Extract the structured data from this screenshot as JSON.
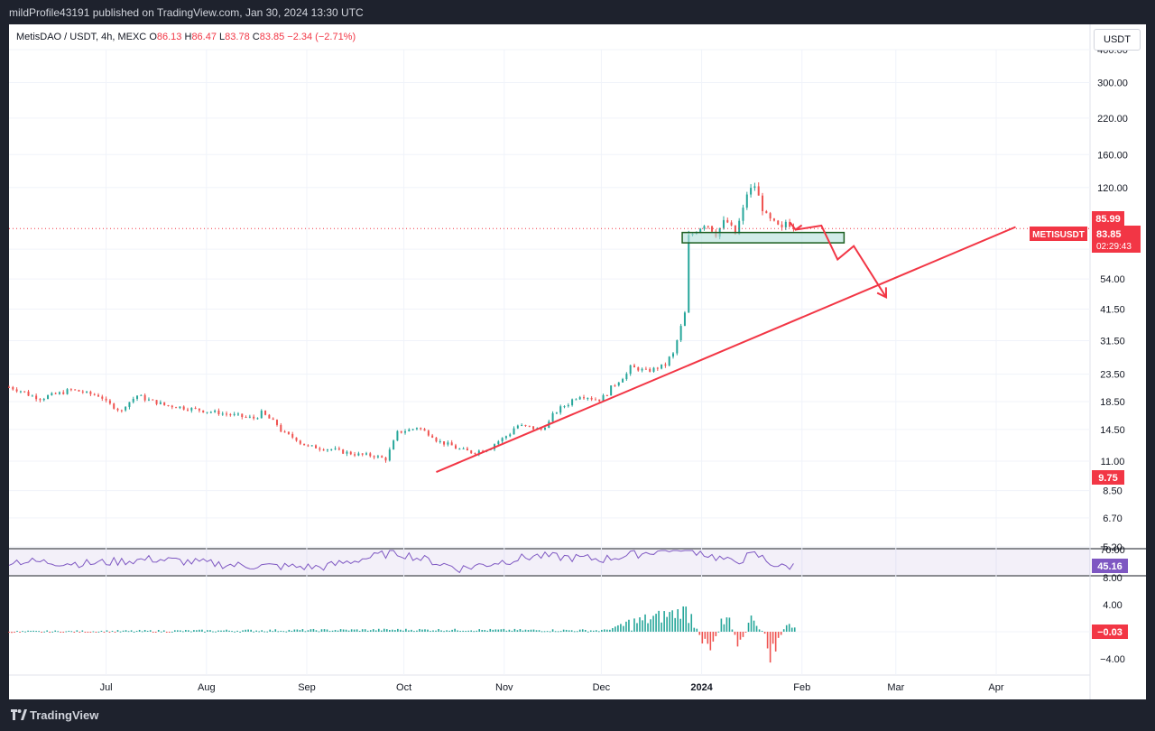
{
  "header": {
    "publisher_line": "mildProfile43191 published on TradingView.com, Jan 30, 2024 13:30 UTC"
  },
  "legend": {
    "symbol": "MetisDAO / USDT, 4h, MEXC",
    "o_label": "O",
    "o": "86.13",
    "h_label": "H",
    "h": "86.47",
    "l_label": "L",
    "l": "83.78",
    "c_label": "C",
    "c": "83.85",
    "change": "−2.34 (−2.71%)"
  },
  "currency_button": "USDT",
  "price_axis": {
    "ticks": [
      "400.00",
      "300.00",
      "220.00",
      "160.00",
      "120.00",
      "70.00",
      "54.00",
      "41.50",
      "31.50",
      "23.50",
      "18.50",
      "14.50",
      "11.00",
      "8.50",
      "6.70",
      "5.20"
    ],
    "badges": {
      "high": "85.99",
      "symbol": "METISUSDT",
      "last": "83.85",
      "countdown": "02:29:43",
      "low": "9.75"
    }
  },
  "rsi_pane": {
    "ticks": [
      "70.00"
    ],
    "value": "45.16"
  },
  "macd_pane": {
    "ticks": [
      "8.00",
      "4.00",
      "−4.00"
    ],
    "value": "−0.03"
  },
  "time_axis": {
    "labels": [
      "Jul",
      "Aug",
      "Sep",
      "Oct",
      "Nov",
      "Dec",
      "2024",
      "Feb",
      "Mar",
      "Apr"
    ]
  },
  "footer": {
    "brand": "TradingView"
  },
  "colors": {
    "up": "#26a69a",
    "down": "#ef5350",
    "annotation": "#f23645",
    "rsi": "#7e57c2",
    "zone_fill": "#b2dfdb",
    "zone_border": "#1b5e20"
  },
  "chart_data": {
    "type": "candlestick",
    "scale": "log",
    "ylim": [
      5.2,
      400
    ],
    "xlim": [
      "2023-06-01",
      "2024-04-30"
    ],
    "grid": true,
    "price_path": [
      [
        "2023-06-01",
        21.0
      ],
      [
        "2023-06-10",
        19.0
      ],
      [
        "2023-06-20",
        20.5
      ],
      [
        "2023-06-28",
        19.5
      ],
      [
        "2023-07-05",
        17.0
      ],
      [
        "2023-07-10",
        19.5
      ],
      [
        "2023-07-18",
        18.0
      ],
      [
        "2023-07-25",
        17.5
      ],
      [
        "2023-08-01",
        17.0
      ],
      [
        "2023-08-08",
        16.5
      ],
      [
        "2023-08-15",
        16.0
      ],
      [
        "2023-08-18",
        16.8
      ],
      [
        "2023-08-25",
        14.0
      ],
      [
        "2023-09-01",
        12.5
      ],
      [
        "2023-09-08",
        12.2
      ],
      [
        "2023-09-15",
        11.7
      ],
      [
        "2023-09-22",
        11.5
      ],
      [
        "2023-09-25",
        11.2
      ],
      [
        "2023-09-28",
        14.0
      ],
      [
        "2023-10-05",
        14.8
      ],
      [
        "2023-10-12",
        13.0
      ],
      [
        "2023-10-18",
        12.2
      ],
      [
        "2023-10-22",
        11.8
      ],
      [
        "2023-10-28",
        12.5
      ],
      [
        "2023-11-05",
        15.0
      ],
      [
        "2023-11-12",
        14.5
      ],
      [
        "2023-11-18",
        17.5
      ],
      [
        "2023-11-24",
        19.5
      ],
      [
        "2023-11-30",
        18.8
      ],
      [
        "2023-12-05",
        21.5
      ],
      [
        "2023-12-10",
        25.0
      ],
      [
        "2023-12-15",
        24.0
      ],
      [
        "2023-12-20",
        25.5
      ],
      [
        "2023-12-23",
        28.0
      ],
      [
        "2023-12-26",
        40.0
      ],
      [
        "2023-12-27",
        60.0
      ],
      [
        "2023-12-28",
        78.0
      ],
      [
        "2024-01-02",
        90.0
      ],
      [
        "2024-01-05",
        80.0
      ],
      [
        "2024-01-08",
        93.0
      ],
      [
        "2024-01-11",
        80.0
      ],
      [
        "2024-01-14",
        110.0
      ],
      [
        "2024-01-17",
        122.0
      ],
      [
        "2024-01-19",
        100.0
      ],
      [
        "2024-01-22",
        90.0
      ],
      [
        "2024-01-25",
        83.0
      ],
      [
        "2024-01-27",
        89.0
      ],
      [
        "2024-01-30",
        83.85
      ]
    ],
    "rsi_path": [
      [
        "2023-06-01",
        52
      ],
      [
        "2023-06-25",
        48
      ],
      [
        "2023-07-15",
        55
      ],
      [
        "2023-08-10",
        45
      ],
      [
        "2023-09-05",
        42
      ],
      [
        "2023-09-28",
        66
      ],
      [
        "2023-10-18",
        40
      ],
      [
        "2023-11-10",
        60
      ],
      [
        "2023-12-01",
        55
      ],
      [
        "2023-12-26",
        74
      ],
      [
        "2024-01-10",
        50
      ],
      [
        "2024-01-17",
        62
      ],
      [
        "2024-01-25",
        42
      ],
      [
        "2024-01-30",
        45.16
      ]
    ],
    "macd_path": [
      [
        "2023-06-01",
        0.0
      ],
      [
        "2023-09-28",
        0.3
      ],
      [
        "2023-12-01",
        0.2
      ],
      [
        "2023-12-27",
        3.2
      ],
      [
        "2024-01-03",
        -3.0
      ],
      [
        "2024-01-08",
        2.0
      ],
      [
        "2024-01-12",
        -1.5
      ],
      [
        "2024-01-17",
        2.5
      ],
      [
        "2024-01-22",
        -3.5
      ],
      [
        "2024-01-27",
        1.5
      ],
      [
        "2024-01-30",
        -0.03
      ]
    ],
    "trendline": [
      [
        "2023-10-11",
        10.0
      ],
      [
        "2024-04-07",
        85.0
      ]
    ],
    "zone": {
      "from": "2023-12-26",
      "to": "2024-02-14",
      "low": 74.0,
      "high": 81.0
    },
    "projection": [
      [
        "2024-01-30",
        83.0
      ],
      [
        "2024-02-07",
        86.0
      ],
      [
        "2024-02-12",
        64.0
      ],
      [
        "2024-02-17",
        72.0
      ],
      [
        "2024-02-27",
        46.0
      ]
    ],
    "last_price": 83.85
  }
}
